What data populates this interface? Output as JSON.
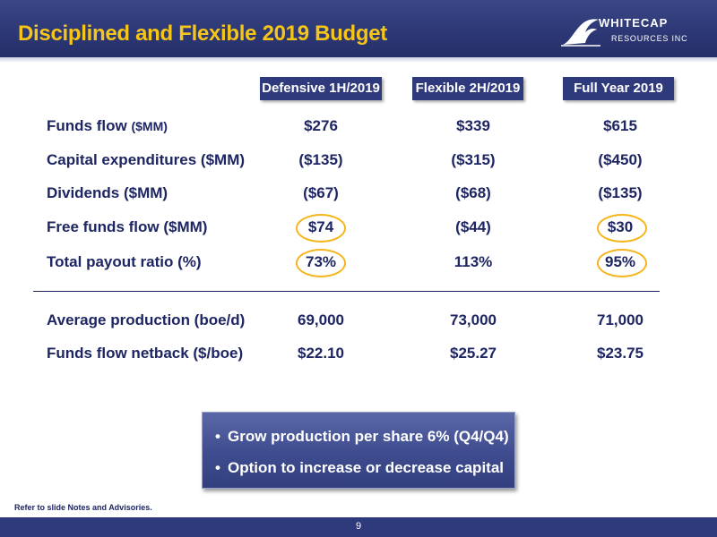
{
  "header": {
    "title": "Disciplined and Flexible 2019 Budget",
    "logo": {
      "name": "WHITECAP",
      "sub": "RESOURCES INC",
      "icon": "wave-logo-icon"
    }
  },
  "columns": [
    "Defensive 1H/2019",
    "Flexible 2H/2019",
    "Full Year 2019"
  ],
  "rows": [
    {
      "label": "Funds flow",
      "unit": "($MM)",
      "values": [
        "$276",
        "$339",
        "$615"
      ]
    },
    {
      "label": "Capital expenditures ($MM)",
      "unit": "",
      "values": [
        "($135)",
        "($315)",
        "($450)"
      ]
    },
    {
      "label": "Dividends ($MM)",
      "unit": "",
      "values": [
        "($67)",
        "($68)",
        "($135)"
      ]
    },
    {
      "label": "Free funds flow ($MM)",
      "unit": "",
      "values": [
        "$74",
        "($44)",
        "$30"
      ]
    },
    {
      "label": "Total payout ratio (%)",
      "unit": "",
      "values": [
        "73%",
        "113%",
        "95%"
      ]
    },
    {
      "label": "Average production (boe/d)",
      "unit": "",
      "values": [
        "69,000",
        "73,000",
        "71,000"
      ]
    },
    {
      "label": "Funds flow netback ($/boe)",
      "unit": "",
      "values": [
        "$22.10",
        "$25.27",
        "$23.75"
      ]
    }
  ],
  "callout": {
    "bullets": [
      "Grow production per share 6% (Q4/Q4)",
      "Option to increase or decrease capital"
    ]
  },
  "footnote": "Refer to slide Notes and Advisories.",
  "page_number": "9",
  "colors": {
    "navy": "#2e3a7c",
    "gold": "#f5c518",
    "highlight_ring": "#f5b51b",
    "text": "#1d2563"
  }
}
